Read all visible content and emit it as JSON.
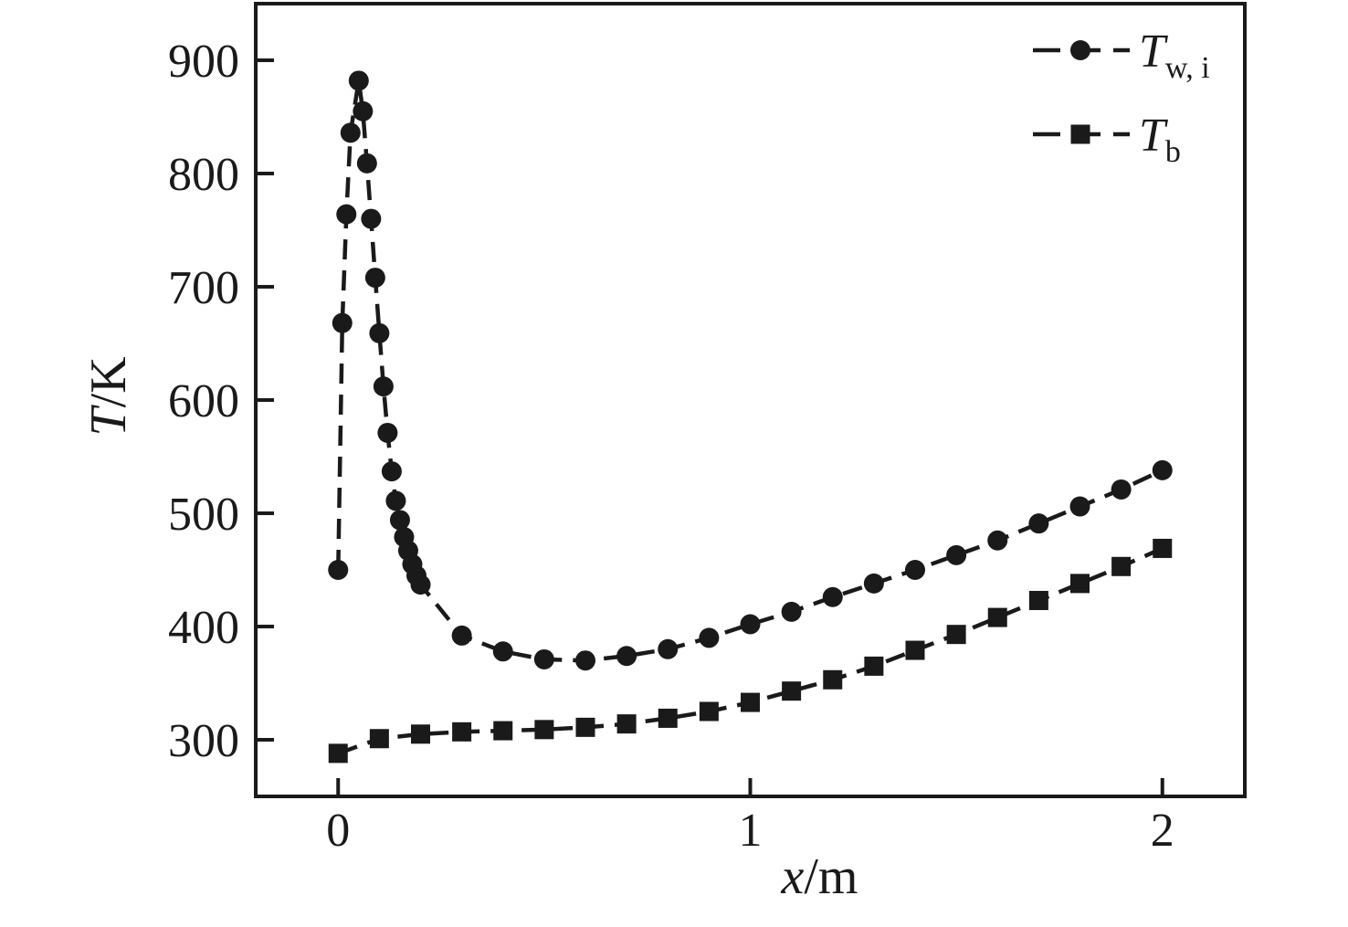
{
  "figure": {
    "background": "#ffffff",
    "ink_color": "#1a1a1a"
  },
  "chart_data": {
    "type": "line",
    "title": "",
    "xlabel": {
      "var": "x",
      "rest": "/m"
    },
    "ylabel": {
      "var": "T",
      "rest": "/K"
    },
    "xlim": [
      -0.2,
      2.2
    ],
    "ylim": [
      250,
      950
    ],
    "grid": false,
    "legend_position": "top-right",
    "x_ticks": [
      {
        "value": 0,
        "label": "0"
      },
      {
        "value": 1,
        "label": "1"
      },
      {
        "value": 2,
        "label": "2"
      }
    ],
    "y_ticks": [
      {
        "value": 300,
        "label": "300"
      },
      {
        "value": 400,
        "label": "400"
      },
      {
        "value": 500,
        "label": "500"
      },
      {
        "value": 600,
        "label": "600"
      },
      {
        "value": 700,
        "label": "700"
      },
      {
        "value": 800,
        "label": "800"
      },
      {
        "value": 900,
        "label": "900"
      }
    ],
    "series": [
      {
        "name": "T_w,i",
        "legend_main": "T",
        "legend_sub": "w, i",
        "marker": "circle",
        "color": "#1a1a1a",
        "line_style": "dashed",
        "points": [
          [
            0.0,
            450
          ],
          [
            0.01,
            668
          ],
          [
            0.02,
            764
          ],
          [
            0.03,
            836
          ],
          [
            0.05,
            882
          ],
          [
            0.06,
            855
          ],
          [
            0.07,
            809
          ],
          [
            0.08,
            760
          ],
          [
            0.09,
            708
          ],
          [
            0.1,
            659
          ],
          [
            0.11,
            612
          ],
          [
            0.12,
            571
          ],
          [
            0.13,
            537
          ],
          [
            0.14,
            511
          ],
          [
            0.15,
            494
          ],
          [
            0.16,
            479
          ],
          [
            0.17,
            467
          ],
          [
            0.18,
            455
          ],
          [
            0.19,
            445
          ],
          [
            0.2,
            437
          ],
          [
            0.3,
            392
          ],
          [
            0.4,
            378
          ],
          [
            0.5,
            371
          ],
          [
            0.6,
            370
          ],
          [
            0.7,
            374
          ],
          [
            0.8,
            380
          ],
          [
            0.9,
            390
          ],
          [
            1.0,
            402
          ],
          [
            1.1,
            413
          ],
          [
            1.2,
            426
          ],
          [
            1.3,
            438
          ],
          [
            1.4,
            450
          ],
          [
            1.5,
            463
          ],
          [
            1.6,
            476
          ],
          [
            1.7,
            491
          ],
          [
            1.8,
            506
          ],
          [
            1.9,
            521
          ],
          [
            2.0,
            538
          ]
        ]
      },
      {
        "name": "T_b",
        "legend_main": "T",
        "legend_sub": "b",
        "marker": "square",
        "color": "#1a1a1a",
        "line_style": "dashed",
        "points": [
          [
            0.0,
            288
          ],
          [
            0.1,
            301
          ],
          [
            0.2,
            305
          ],
          [
            0.3,
            307
          ],
          [
            0.4,
            308
          ],
          [
            0.5,
            309
          ],
          [
            0.6,
            311
          ],
          [
            0.7,
            314
          ],
          [
            0.8,
            319
          ],
          [
            0.9,
            325
          ],
          [
            1.0,
            333
          ],
          [
            1.1,
            343
          ],
          [
            1.2,
            353
          ],
          [
            1.3,
            365
          ],
          [
            1.4,
            379
          ],
          [
            1.5,
            393
          ],
          [
            1.6,
            408
          ],
          [
            1.7,
            423
          ],
          [
            1.8,
            438
          ],
          [
            1.9,
            453
          ],
          [
            2.0,
            469
          ]
        ]
      }
    ]
  }
}
